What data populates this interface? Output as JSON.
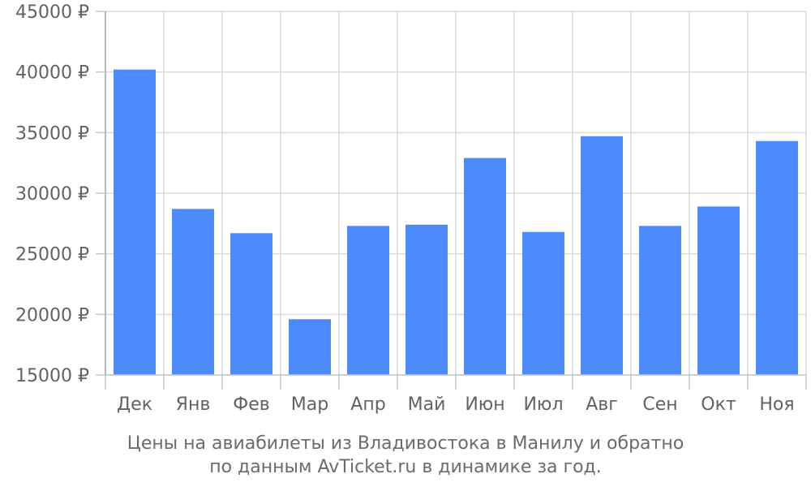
{
  "chart_data": {
    "type": "bar",
    "categories": [
      "Дек",
      "Янв",
      "Фев",
      "Мар",
      "Апр",
      "Май",
      "Июн",
      "Июл",
      "Авг",
      "Сен",
      "Окт",
      "Ноя"
    ],
    "values": [
      40200,
      28700,
      26700,
      19600,
      27300,
      27400,
      32900,
      26800,
      34700,
      27300,
      28900,
      34300
    ],
    "ylim": [
      15000,
      45000
    ],
    "yticks": [
      15000,
      20000,
      25000,
      30000,
      35000,
      40000,
      45000
    ],
    "ytick_labels": [
      "15000 ₽",
      "20000 ₽",
      "25000 ₽",
      "30000 ₽",
      "35000 ₽",
      "40000 ₽",
      "45000 ₽"
    ],
    "grid": true,
    "bar_color": "#4d8afb"
  },
  "caption": {
    "line1": "Цены на авиабилеты из Владивостока в Манилу и обратно",
    "line2": "по данным AvTicket.ru в динамике за год."
  }
}
